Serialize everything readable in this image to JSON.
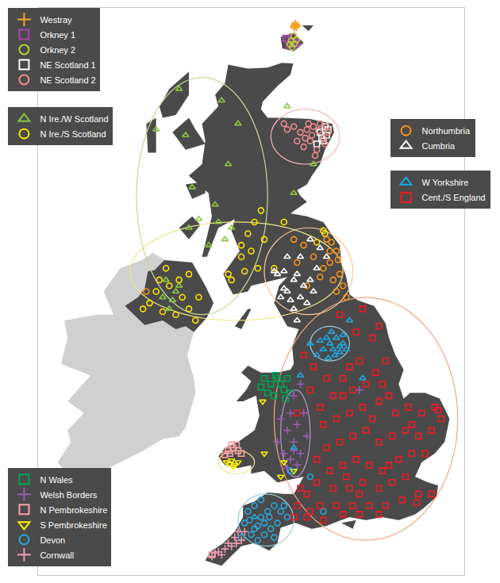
{
  "chart_data": {
    "type": "scatter",
    "xlim": [
      -10.8,
      2.2
    ],
    "ylim": [
      49.8,
      59.6
    ],
    "grid": false,
    "tick_labels": false,
    "series": [
      {
        "name": "Westray",
        "color": "#f7a21b",
        "marker": "cross",
        "x": [
          -2.98,
          -2.95,
          -2.92,
          -2.99,
          -2.9,
          -2.96,
          -3.0
        ],
        "y": [
          59.29,
          59.31,
          59.27,
          59.26,
          59.3,
          59.33,
          59.28
        ]
      },
      {
        "name": "Orkney 1",
        "color": "#a349a4",
        "marker": "square",
        "x": [
          -3.2,
          -3.1,
          -3.0,
          -3.15,
          -2.95,
          -3.25,
          -3.05,
          -2.9
        ],
        "y": [
          59.05,
          59.0,
          59.02,
          58.95,
          58.97,
          59.08,
          59.1,
          59.0
        ]
      },
      {
        "name": "Orkney 2",
        "color": "#b5d334",
        "marker": "circle",
        "x": [
          -3.05,
          -2.98,
          -3.12,
          -2.92,
          -3.0,
          -3.08
        ],
        "y": [
          58.92,
          58.98,
          58.97,
          59.05,
          59.12,
          59.03
        ]
      },
      {
        "name": "NE Scotland 1",
        "color": "#ffffff",
        "marker": "square",
        "x": [
          -2.1,
          -2.0,
          -2.2,
          -2.3,
          -2.05,
          -2.15,
          -1.95
        ],
        "y": [
          57.3,
          57.4,
          57.45,
          57.25,
          57.55,
          57.35,
          57.5
        ]
      },
      {
        "name": "NE Scotland 2",
        "color": "#f08c8c",
        "marker": "circle",
        "x": [
          -2.6,
          -2.4,
          -2.2,
          -2.8,
          -3.0,
          -2.5,
          -2.1,
          -1.95,
          -2.7,
          -3.2,
          -2.3,
          -2.45,
          -2.9,
          -2.05,
          -2.55,
          -3.3,
          -2.35,
          -2.0,
          -2.65,
          -2.25
        ],
        "y": [
          57.5,
          57.55,
          57.6,
          57.45,
          57.55,
          57.3,
          57.35,
          57.45,
          57.2,
          57.5,
          57.15,
          57.4,
          57.3,
          57.25,
          57.6,
          57.6,
          57.05,
          57.55,
          57.35,
          57.48
        ]
      },
      {
        "name": "N Ire./W Scotland",
        "color": "#8dc63f",
        "marker": "triangle-up",
        "x": [
          -6.5,
          -7.2,
          -6.3,
          -5.2,
          -4.7,
          -5.0,
          -5.4,
          -6.2,
          -6.1,
          -5.9,
          -5.6,
          -5.1,
          -4.9,
          -5.3,
          -3.0,
          -3.2,
          -6.9,
          -6.6,
          -6.7,
          -7.0,
          -6.5,
          -6.8,
          -2.4
        ],
        "y": [
          58.2,
          57.5,
          57.4,
          58.0,
          57.6,
          56.9,
          56.2,
          55.8,
          56.5,
          55.95,
          55.5,
          55.6,
          55.8,
          55.9,
          56.4,
          57.9,
          54.9,
          54.7,
          54.55,
          54.6,
          54.8,
          54.4,
          56.9
        ]
      },
      {
        "name": "N Ire./S Scotland",
        "color": "#ffe500",
        "marker": "circle",
        "x": [
          -6.2,
          -6.5,
          -6.8,
          -7.2,
          -7.4,
          -7.0,
          -6.6,
          -6.2,
          -5.9,
          -6.0,
          -6.9,
          -7.6,
          -6.4,
          -7.1,
          -5.0,
          -4.6,
          -4.4,
          -4.2,
          -4.6,
          -4.1,
          -4.9,
          -3.6,
          -4.3,
          -4.0,
          -3.3,
          -3.9,
          -4.5,
          -2.1,
          -2.3,
          -2.05
        ],
        "y": [
          55.0,
          54.9,
          54.8,
          54.7,
          54.5,
          54.35,
          54.3,
          54.4,
          54.6,
          54.2,
          55.1,
          54.4,
          54.6,
          54.9,
          55.0,
          55.3,
          55.7,
          55.9,
          55.5,
          55.1,
          54.9,
          55.1,
          55.4,
          56.1,
          55.9,
          55.6,
          55.05,
          55.75,
          55.55,
          55.7
        ]
      },
      {
        "name": "N Wales",
        "color": "#00a651",
        "marker": "square",
        "x": [
          -3.9,
          -3.7,
          -3.5,
          -3.3,
          -3.6,
          -3.2,
          -3.8,
          -4.0,
          -3.4,
          -3.1,
          -3.55,
          -3.25
        ],
        "y": [
          53.2,
          53.1,
          53.2,
          53.0,
          52.9,
          53.2,
          52.95,
          53.05,
          53.1,
          52.95,
          53.25,
          52.85
        ]
      },
      {
        "name": "Welsh Borders",
        "color": "#9b59b6",
        "marker": "cross",
        "x": [
          -3.0,
          -3.1,
          -2.9,
          -3.2,
          -3.0,
          -2.8,
          -3.1,
          -2.9,
          -3.3,
          -2.7,
          -3.4,
          -2.6,
          -3.5,
          -2.8,
          -1.0,
          -3.2,
          -3.0
        ],
        "y": [
          52.9,
          52.6,
          52.4,
          52.3,
          52.1,
          51.9,
          51.8,
          51.7,
          51.9,
          52.6,
          52.5,
          52.2,
          52.1,
          53.1,
          53.0,
          51.65,
          51.95
        ]
      },
      {
        "name": "N Pembrokeshire",
        "color": "#f4a3a3",
        "marker": "square",
        "x": [
          -5.0,
          -4.85,
          -4.7,
          -4.95,
          -4.75,
          -4.6,
          -4.9,
          -5.1,
          -5.5
        ],
        "y": [
          51.95,
          52.0,
          51.95,
          51.9,
          52.05,
          51.9,
          52.05,
          51.88,
          50.15
        ]
      },
      {
        "name": "S Pembrokeshire",
        "color": "#fff200",
        "marker": "triangle-down",
        "x": [
          -4.95,
          -4.8,
          -4.9,
          -4.7,
          -5.05,
          -4.85,
          -3.95,
          -3.9,
          -3.3,
          -3.0,
          -3.4
        ],
        "y": [
          51.72,
          51.7,
          51.78,
          51.75,
          51.75,
          51.67,
          52.8,
          51.9,
          51.75,
          51.6,
          51.5
        ]
      },
      {
        "name": "Devon",
        "color": "#29a9e0",
        "marker": "circle",
        "x": [
          -4.1,
          -3.9,
          -3.7,
          -3.5,
          -4.2,
          -4.0,
          -3.8,
          -3.6,
          -4.2,
          -4.4,
          -3.4,
          -3.2,
          -3.9,
          -4.3,
          -3.6,
          -4.0,
          -3.3,
          -4.5,
          -3.75,
          -4.1,
          -2.5,
          -3.1,
          -4.6,
          -2.1,
          -4.35
        ],
        "y": [
          50.4,
          50.5,
          50.6,
          50.7,
          50.6,
          50.8,
          50.9,
          51.0,
          51.0,
          50.9,
          50.9,
          50.8,
          50.7,
          50.5,
          50.45,
          51.1,
          51.0,
          50.7,
          50.8,
          50.65,
          51.5,
          51.6,
          50.45,
          50.9,
          50.75
        ]
      },
      {
        "name": "Cornwall",
        "color": "#f49ab5",
        "marker": "cross",
        "x": [
          -5.5,
          -5.3,
          -5.1,
          -5.0,
          -4.8,
          -4.7,
          -5.2,
          -4.9,
          -4.6,
          -4.5,
          -5.4,
          -4.75
        ],
        "y": [
          50.12,
          50.2,
          50.25,
          50.35,
          50.45,
          50.55,
          50.15,
          50.3,
          50.4,
          50.55,
          50.18,
          50.35
        ]
      },
      {
        "name": "Northumbria",
        "color": "#f7941d",
        "marker": "circle",
        "x": [
          -1.7,
          -1.9,
          -1.6,
          -1.8,
          -1.5,
          -2.1,
          -1.85,
          -2.4,
          -2.0,
          -1.4,
          -1.7,
          -2.7,
          -3.0,
          -2.2,
          -1.9,
          -2.6,
          -7.5,
          -1.65,
          -2.9
        ],
        "y": [
          55.4,
          55.2,
          55.0,
          54.9,
          54.8,
          55.1,
          55.55,
          55.3,
          55.6,
          54.6,
          54.7,
          55.5,
          55.6,
          54.95,
          55.4,
          54.8,
          54.7,
          55.25,
          55.2
        ]
      },
      {
        "name": "Cumbria",
        "color": "#ffffff",
        "marker": "triangle-up",
        "x": [
          -3.0,
          -3.2,
          -3.4,
          -3.0,
          -2.8,
          -2.7,
          -2.9,
          -3.3,
          -2.5,
          -3.5,
          -3.1,
          -2.6,
          -3.3,
          -2.3,
          -2.0,
          -2.2,
          -2.8,
          -3.6,
          -2.4,
          -3.2,
          -2.5,
          -2.9
        ],
        "y": [
          54.9,
          54.7,
          54.6,
          54.4,
          54.6,
          54.8,
          55.0,
          55.05,
          54.9,
          55.0,
          54.55,
          54.5,
          54.75,
          55.1,
          55.3,
          55.45,
          55.3,
          55.05,
          54.7,
          55.3,
          55.6,
          54.2
        ]
      },
      {
        "name": "W Yorkshire",
        "color": "#1ea7e1",
        "marker": "triangle-up",
        "x": [
          -1.9,
          -1.8,
          -1.6,
          -2.0,
          -1.7,
          -1.5,
          -1.75,
          -2.1,
          -1.85,
          -1.6,
          -1.4,
          -2.2,
          -2.3,
          -1.95,
          -1.5,
          -2.5,
          -2.8,
          -3.0,
          -4.2,
          -0.9,
          -1.3
        ],
        "y": [
          53.8,
          53.7,
          53.75,
          53.9,
          53.9,
          53.8,
          53.6,
          53.7,
          54.0,
          53.65,
          53.7,
          53.85,
          53.6,
          53.55,
          53.95,
          53.8,
          53.25,
          52.0,
          50.8,
          53.2,
          54.2
        ]
      },
      {
        "name": "Cent./S England",
        "color": "#ed1c24",
        "marker": "square",
        "x": [
          -1.5,
          -1.2,
          -0.8,
          -0.5,
          -0.2,
          -1.0,
          -1.3,
          -0.6,
          -1.1,
          -0.4,
          -1.6,
          -0.9,
          -1.8,
          -2.2,
          -2.1,
          -1.7,
          -1.3,
          -0.9,
          -0.4,
          0.1,
          0.5,
          0.9,
          1.3,
          1.5,
          1.2,
          0.8,
          0.4,
          0.0,
          -0.4,
          -0.8,
          -1.2,
          -1.6,
          -2.0,
          -2.3,
          -1.9,
          -1.5,
          -1.1,
          -0.7,
          -0.3,
          0.2,
          0.6,
          1.0,
          0.4,
          0.0,
          -0.4,
          -0.9,
          -1.3,
          -1.8,
          -2.3,
          -2.6,
          -2.2,
          -1.7,
          -1.2,
          -0.7,
          -0.2,
          0.3,
          0.8,
          1.2,
          0.75,
          -0.4,
          -1.0,
          -1.5,
          -2.1,
          -2.6,
          -2.9,
          -3.0,
          -2.5,
          -2.8,
          -1.4,
          -0.1,
          -0.3,
          -1.5,
          -2.0,
          -2.4,
          -2.7,
          -2.5,
          -2.9,
          0.6,
          1.4,
          -0.1,
          -0.6,
          -1.0
        ],
        "y": [
          53.2,
          53.0,
          53.1,
          53.3,
          53.5,
          53.5,
          53.4,
          53.9,
          54.0,
          54.1,
          54.3,
          54.4,
          52.9,
          52.7,
          52.4,
          52.5,
          52.6,
          52.7,
          52.8,
          52.6,
          52.7,
          52.6,
          52.7,
          52.5,
          52.3,
          52.2,
          52.3,
          52.2,
          52.1,
          52.3,
          52.2,
          52.1,
          52.0,
          51.8,
          51.6,
          51.7,
          51.8,
          51.7,
          51.6,
          51.8,
          51.9,
          51.9,
          51.5,
          51.4,
          51.3,
          51.4,
          51.3,
          51.3,
          51.4,
          51.2,
          51.0,
          51.0,
          51.0,
          51.0,
          51.0,
          51.1,
          51.2,
          51.2,
          51.05,
          50.85,
          50.85,
          50.85,
          50.75,
          50.8,
          51.0,
          50.8,
          50.9,
          51.3,
          51.5,
          52.9,
          53.1,
          52.9,
          53.2,
          53.4,
          53.6,
          53.0,
          52.6,
          52.4,
          52.65,
          51.7,
          52.5,
          51.2
        ]
      }
    ]
  }
}
